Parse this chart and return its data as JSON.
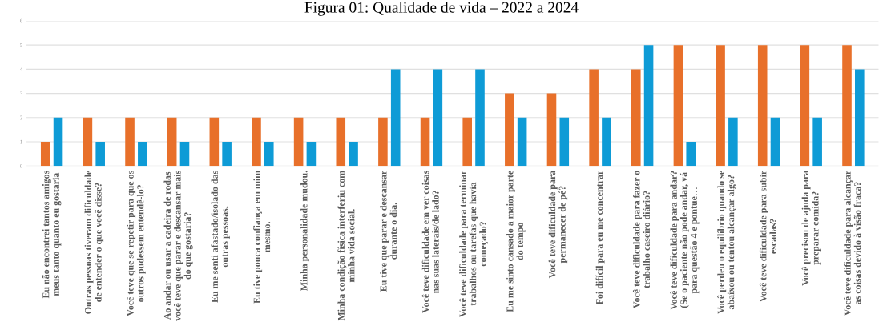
{
  "chart_data": {
    "type": "bar",
    "title": "Figura 01: Qualidade de vida – 2022 a 2024",
    "categories": [
      "Eu não encontrei tantos amigos\nmeus tanto quanto eu gostaria",
      "Outras pessoas tiveram dificuldade\nde entender o que você disse?",
      "Você teve que se repetir para que os\noutros pudessem entendê-lo?",
      "Ao andar ou usar a cadeira de rodas\nvocê teve que parar e descansar mais\ndo que gostaria?",
      "Eu me senti afastado/isolado das\noutras pessoas.",
      "Eu tive pouca confiança em mim\nmesmo.",
      "Minha personalidade mudou.",
      "Minha condição física interferiu com\nminha vida social.",
      "Eu tive que parar e descansar\ndurante o dia.",
      "Você teve dificuldade em ver coisas\nnas suas laterais/de lado?",
      "Você teve dificuldade para terminar\ntrabalhos ou tarefas que havia\ncomeçado?",
      "Eu me sinto cansado a maior parte\ndo tempo",
      "Você teve dificuldade para\npermanecer de pé?",
      "Foi difícil para eu me concentrar",
      "Você teve dificuldade para fazer o\ntrabalho caseiro diário?",
      "Você teve dificuldade para andar?\n(Se o paciente não pode andar, vá\npara questão 4 e pontue…",
      "Você perdeu o equilíbrio quando se\nabaixou ou tentou alcançar algo?",
      "Você teve dificuldade para subir\nescadas?",
      "Você precisou de ajuda para\npreparar comida?",
      "Você teve dificuldade para alcançar\nas coisas devido à visão fraca?"
    ],
    "series": [
      {
        "color": "#e8702a",
        "values": [
          1,
          2,
          2,
          2,
          2,
          2,
          2,
          2,
          2,
          2,
          2,
          3,
          3,
          4,
          4,
          5,
          5,
          5,
          5,
          5
        ]
      },
      {
        "color": "#0e9bd6",
        "values": [
          2,
          1,
          1,
          1,
          1,
          1,
          1,
          1,
          4,
          4,
          4,
          2,
          2,
          2,
          5,
          1,
          2,
          2,
          2,
          4
        ]
      }
    ],
    "ylim": [
      0,
      6
    ],
    "yticks": [
      0,
      1,
      2,
      3,
      4,
      5,
      6
    ],
    "grid": "y"
  }
}
